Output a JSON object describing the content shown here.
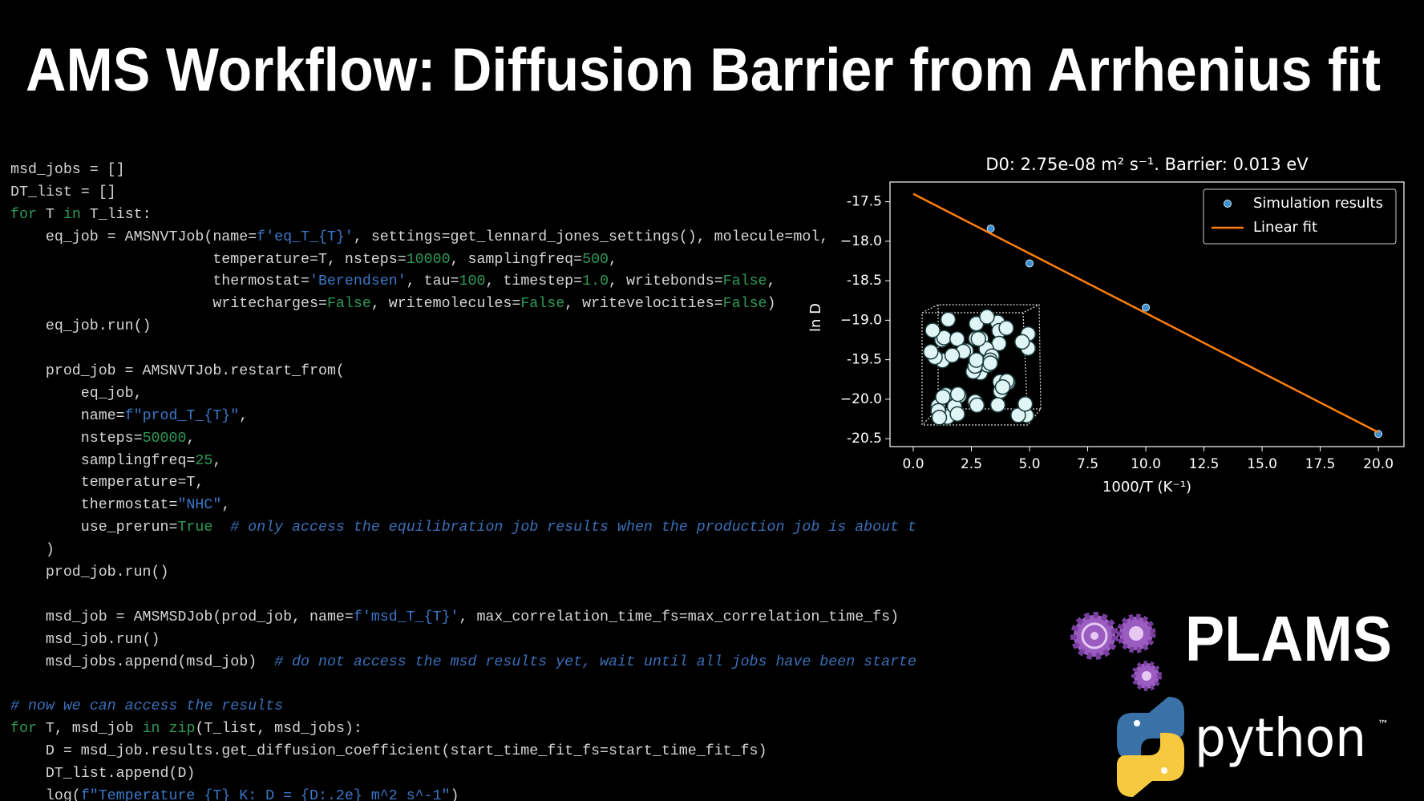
{
  "title": "AMS Workflow: Diffusion Barrier from Arrhenius fit",
  "code": {
    "blocks": [
      [
        [
          "msd_jobs = []"
        ],
        [
          "DT_list = []"
        ],
        [
          {
            "text": "for",
            "color": "#2f9a58"
          },
          " T ",
          {
            "text": "in",
            "color": "#2f9a58"
          },
          " T_list:"
        ],
        [
          "    eq_job = AMSNVTJob(name=",
          {
            "text": "f'eq_T_{T}'",
            "color": "#3a78c8"
          },
          ", settings=get_lennard_jones_settings(), molecule=mol,"
        ],
        [
          "                       temperature=T, nsteps=",
          {
            "text": "10000",
            "color": "#2f9a58"
          },
          ", samplingfreq=",
          {
            "text": "500",
            "color": "#2f9a58"
          },
          ","
        ],
        [
          "                       thermostat=",
          {
            "text": "'Berendsen'",
            "color": "#3a78c8"
          },
          ", tau=",
          {
            "text": "100",
            "color": "#2f9a58"
          },
          ", timestep=",
          {
            "text": "1.0",
            "color": "#2f9a58"
          },
          ", writebonds=",
          {
            "text": "False",
            "color": "#2f9a58"
          },
          ","
        ],
        [
          "                       writecharges=",
          {
            "text": "False",
            "color": "#2f9a58"
          },
          ", writemolecules=",
          {
            "text": "False",
            "color": "#2f9a58"
          },
          ", writevelocities=",
          {
            "text": "False",
            "color": "#2f9a58"
          },
          ")"
        ],
        [
          "    eq_job.run()"
        ]
      ],
      [
        [
          "    prod_job = AMSNVTJob.restart_from("
        ],
        [
          "        eq_job,"
        ],
        [
          "        name=",
          {
            "text": "f\"prod_T_{T}\"",
            "color": "#3a78c8"
          },
          ","
        ],
        [
          "        nsteps=",
          {
            "text": "50000",
            "color": "#2f9a58"
          },
          ","
        ],
        [
          "        samplingfreq=",
          {
            "text": "25",
            "color": "#2f9a58"
          },
          ","
        ],
        [
          "        temperature=T,"
        ],
        [
          "        thermostat=",
          {
            "text": "\"NHC\"",
            "color": "#3a78c8"
          },
          ","
        ],
        [
          "        use_prerun=",
          {
            "text": "True",
            "color": "#2f9a58"
          },
          "  ",
          {
            "text": "# only access the equilibration job results when the production job is about t",
            "color": "#3a6fb8",
            "style": "italic"
          }
        ],
        [
          "    )"
        ],
        [
          "    prod_job.run()"
        ]
      ],
      [
        [
          "    msd_job = AMSMSDJob(prod_job, name=",
          {
            "text": "f'msd_T_{T}'",
            "color": "#3a78c8"
          },
          ", max_correlation_time_fs=max_correlation_time_fs)"
        ],
        [
          "    msd_job.run()"
        ],
        [
          "    msd_jobs.append(msd_job)  ",
          {
            "text": "# do not access the msd results yet, wait until all jobs have been starte",
            "color": "#3a6fb8",
            "style": "italic"
          }
        ]
      ],
      [
        [
          {
            "text": "# now we can access the results",
            "color": "#3a6fb8",
            "style": "italic"
          }
        ],
        [
          {
            "text": "for",
            "color": "#2f9a58"
          },
          " T, msd_job ",
          {
            "text": "in",
            "color": "#2f9a58"
          },
          " ",
          {
            "text": "zip",
            "color": "#2f9a58"
          },
          "(T_list, msd_jobs):"
        ],
        [
          "    D = msd_job.results.get_diffusion_coefficient(start_time_fit_fs=start_time_fit_fs)"
        ],
        [
          "    DT_list.append(D)"
        ],
        [
          "    log(",
          {
            "text": "f\"Temperature {T} K: D = {D:.2e} m^2 s^-1\"",
            "color": "#3a78c8"
          },
          ")"
        ]
      ]
    ]
  },
  "chart_data": {
    "type": "scatter",
    "title": "D0: 2.75e-08 m² s⁻¹. Barrier: 0.013 eV",
    "xlabel": "1000/T (K⁻¹)",
    "ylabel": "ln D",
    "xlim": [
      -1.0,
      21.1
    ],
    "ylim": [
      -20.6,
      -17.25
    ],
    "xticks": [
      {
        "value": 0,
        "label": "0.0"
      },
      2.5,
      {
        "value": 5,
        "label": "5.0"
      },
      7.5,
      {
        "value": 10,
        "label": "10.0"
      },
      12.5,
      {
        "value": 15,
        "label": "15.0"
      },
      17.5,
      {
        "value": 20,
        "label": "20.0"
      }
    ],
    "yticks": [
      -17.5,
      {
        "value": -18,
        "label": "−18.0"
      },
      -18.5,
      {
        "value": -19,
        "label": "−19.0"
      },
      -19.5,
      {
        "value": -20,
        "label": "−20.0"
      },
      -20.5
    ],
    "legend": "upper right",
    "series": [
      {
        "name": "Simulation results",
        "color": "#3b8fd0",
        "type": "scatter",
        "x": [
          3.33,
          5.0,
          10.0,
          20.0
        ],
        "values": [
          -17.84,
          -18.28,
          -18.84,
          -20.44
        ]
      },
      {
        "name": "Linear fit",
        "color": "#ff7f0e",
        "type": "line",
        "x": [
          0,
          20
        ],
        "values": [
          -17.4,
          -20.42
        ]
      }
    ]
  },
  "logos": {
    "plams": "PLAMS",
    "python": "python",
    "trademark": "™"
  }
}
